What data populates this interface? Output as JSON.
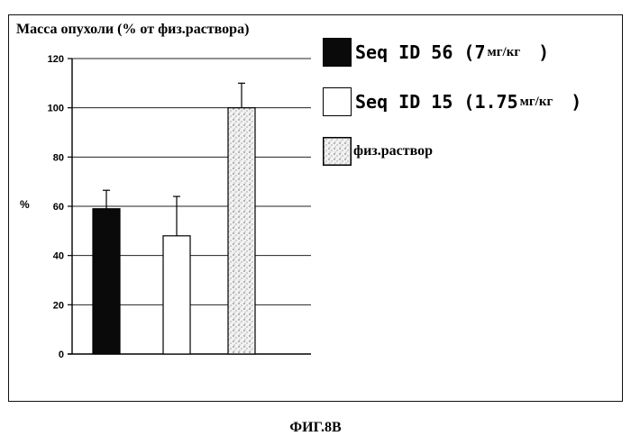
{
  "chart_data": {
    "type": "bar",
    "title": "Масса опухоли (% от физ.раствора)",
    "ylabel": "%",
    "xlabel": "",
    "ylim": [
      0,
      120
    ],
    "yticks": [
      0,
      20,
      40,
      60,
      80,
      100,
      120
    ],
    "grid": true,
    "legend_position": "right",
    "series": [
      {
        "name": "Seq ID 56 (7мг/кг )",
        "value": 59,
        "error": 7.5,
        "fill": "solid-black",
        "color": "#0a0a0a"
      },
      {
        "name": "Seq ID 15 (1.75мг/кг )",
        "value": 48,
        "error": 16,
        "fill": "white",
        "color": "#ffffff"
      },
      {
        "name": "физ.раствор",
        "value": 100,
        "error": 10,
        "fill": "stipple",
        "color": "#e6e6e6"
      }
    ]
  },
  "legend": [
    {
      "text": "Seq ID 56 (7",
      "unit": "мг/кг",
      "close": ")"
    },
    {
      "text": "Seq ID 15 (1.75",
      "unit": "мг/кг",
      "close": ")"
    },
    {
      "text": "физ.раствор"
    }
  ],
  "caption": "ФИГ.8В"
}
